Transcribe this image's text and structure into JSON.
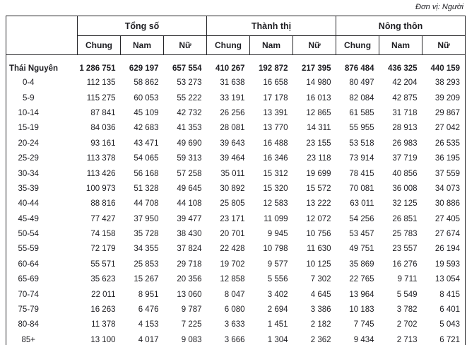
{
  "unit_label": "Đơn vị: Người",
  "table": {
    "col_groups": [
      {
        "label": "Tổng số"
      },
      {
        "label": "Thành thị"
      },
      {
        "label": "Nông thôn"
      }
    ],
    "sub_headers": [
      "Chung",
      "Nam",
      "Nữ"
    ],
    "rows": [
      {
        "label": "Thái Nguyên",
        "bold": true,
        "values": [
          "1 286 751",
          "629 197",
          "657 554",
          "410 267",
          "192 872",
          "217 395",
          "876 484",
          "436 325",
          "440 159"
        ]
      },
      {
        "label": "0-4",
        "values": [
          "112 135",
          "58 862",
          "53 273",
          "31 638",
          "16 658",
          "14 980",
          "80 497",
          "42 204",
          "38 293"
        ]
      },
      {
        "label": "5-9",
        "values": [
          "115 275",
          "60 053",
          "55 222",
          "33 191",
          "17 178",
          "16 013",
          "82 084",
          "42 875",
          "39 209"
        ]
      },
      {
        "label": "10-14",
        "values": [
          "87 841",
          "45 109",
          "42 732",
          "26 256",
          "13 391",
          "12 865",
          "61 585",
          "31 718",
          "29 867"
        ]
      },
      {
        "label": "15-19",
        "values": [
          "84 036",
          "42 683",
          "41 353",
          "28 081",
          "13 770",
          "14 311",
          "55 955",
          "28 913",
          "27 042"
        ]
      },
      {
        "label": "20-24",
        "values": [
          "93 161",
          "43 471",
          "49 690",
          "39 643",
          "16 488",
          "23 155",
          "53 518",
          "26 983",
          "26 535"
        ]
      },
      {
        "label": "25-29",
        "values": [
          "113 378",
          "54 065",
          "59 313",
          "39 464",
          "16 346",
          "23 118",
          "73 914",
          "37 719",
          "36 195"
        ]
      },
      {
        "label": "30-34",
        "values": [
          "113 426",
          "56 168",
          "57 258",
          "35 011",
          "15 312",
          "19 699",
          "78 415",
          "40 856",
          "37 559"
        ]
      },
      {
        "label": "35-39",
        "values": [
          "100 973",
          "51 328",
          "49 645",
          "30 892",
          "15 320",
          "15 572",
          "70 081",
          "36 008",
          "34 073"
        ]
      },
      {
        "label": "40-44",
        "values": [
          "88 816",
          "44 708",
          "44 108",
          "25 805",
          "12 583",
          "13 222",
          "63 011",
          "32 125",
          "30 886"
        ]
      },
      {
        "label": "45-49",
        "values": [
          "77 427",
          "37 950",
          "39 477",
          "23 171",
          "11 099",
          "12 072",
          "54 256",
          "26 851",
          "27 405"
        ]
      },
      {
        "label": "50-54",
        "values": [
          "74 158",
          "35 728",
          "38 430",
          "20 701",
          "9 945",
          "10 756",
          "53 457",
          "25 783",
          "27 674"
        ]
      },
      {
        "label": "55-59",
        "values": [
          "72 179",
          "34 355",
          "37 824",
          "22 428",
          "10 798",
          "11 630",
          "49 751",
          "23 557",
          "26 194"
        ]
      },
      {
        "label": "60-64",
        "values": [
          "55 571",
          "25 853",
          "29 718",
          "19 702",
          "9 577",
          "10 125",
          "35 869",
          "16 276",
          "19 593"
        ]
      },
      {
        "label": "65-69",
        "values": [
          "35 623",
          "15 267",
          "20 356",
          "12 858",
          "5 556",
          "7 302",
          "22 765",
          "9 711",
          "13 054"
        ]
      },
      {
        "label": "70-74",
        "values": [
          "22 011",
          "8 951",
          "13 060",
          "8 047",
          "3 402",
          "4 645",
          "13 964",
          "5 549",
          "8 415"
        ]
      },
      {
        "label": "75-79",
        "values": [
          "16 263",
          "6 476",
          "9 787",
          "6 080",
          "2 694",
          "3 386",
          "10 183",
          "3 782",
          "6 401"
        ]
      },
      {
        "label": "80-84",
        "values": [
          "11 378",
          "4 153",
          "7 225",
          "3 633",
          "1 451",
          "2 182",
          "7 745",
          "2 702",
          "5 043"
        ]
      },
      {
        "label": "85+",
        "values": [
          "13 100",
          "4 017",
          "9 083",
          "3 666",
          "1 304",
          "2 362",
          "9 434",
          "2 713",
          "6 721"
        ]
      }
    ]
  }
}
